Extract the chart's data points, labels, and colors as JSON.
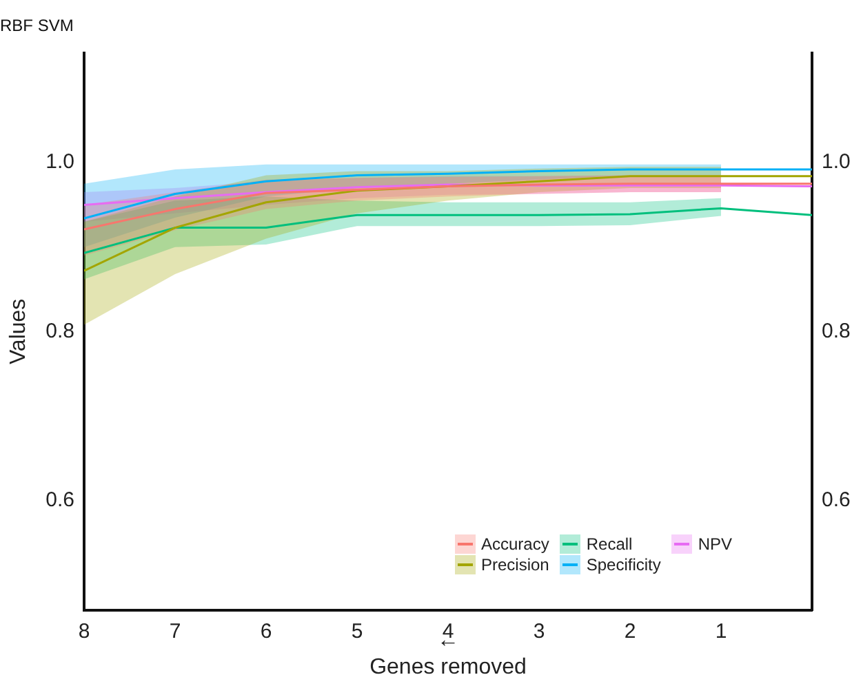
{
  "chart_data": {
    "type": "line",
    "title": "RBF SVM",
    "xlabel": "←\nGenes removed",
    "ylabel": "Values",
    "x": [
      8,
      7,
      6,
      5,
      4,
      3,
      2,
      1,
      0
    ],
    "series": [
      {
        "name": "Accuracy",
        "color": "#f8766d",
        "values": [
          0.921,
          0.945,
          0.964,
          0.968,
          0.972,
          0.974,
          0.975,
          0.975,
          0.975
        ],
        "lower": [
          0.89,
          0.92,
          0.945,
          0.955,
          0.96,
          0.963,
          0.965,
          0.965,
          null
        ],
        "upper": [
          0.95,
          0.965,
          0.98,
          0.982,
          0.983,
          0.984,
          0.985,
          0.985,
          null
        ]
      },
      {
        "name": "Precision",
        "color": "#a3a500",
        "values": [
          0.872,
          0.923,
          0.953,
          0.967,
          0.972,
          0.978,
          0.984,
          0.984,
          0.984
        ],
        "lower": [
          0.808,
          0.868,
          0.91,
          0.94,
          0.955,
          0.965,
          0.97,
          0.97,
          null
        ],
        "upper": [
          0.93,
          0.96,
          0.985,
          0.99,
          0.99,
          0.993,
          0.995,
          0.995,
          null
        ]
      },
      {
        "name": "Recall",
        "color": "#00bf7d",
        "values": [
          0.893,
          0.923,
          0.923,
          0.938,
          0.938,
          0.938,
          0.939,
          0.946,
          0.938
        ],
        "lower": [
          0.862,
          0.9,
          0.903,
          0.925,
          0.925,
          0.925,
          0.926,
          0.937,
          null
        ],
        "upper": [
          0.93,
          0.955,
          0.96,
          0.955,
          0.953,
          0.953,
          0.953,
          0.958,
          null
        ]
      },
      {
        "name": "Specificity",
        "color": "#00b0f6",
        "values": [
          0.934,
          0.963,
          0.978,
          0.985,
          0.987,
          0.99,
          0.992,
          0.992,
          0.992
        ],
        "lower": [
          0.9,
          0.935,
          0.96,
          0.97,
          0.975,
          0.98,
          0.985,
          0.985,
          null
        ],
        "upper": [
          0.975,
          0.992,
          0.998,
          0.998,
          0.998,
          0.998,
          0.998,
          0.998,
          null
        ]
      },
      {
        "name": "NPV",
        "color": "#e76bf3",
        "values": [
          0.95,
          0.958,
          0.965,
          0.971,
          0.974,
          0.973,
          0.973,
          0.973,
          0.972
        ],
        "lower": [
          0.93,
          0.94,
          0.95,
          0.958,
          0.962,
          0.963,
          0.965,
          0.965,
          null
        ],
        "upper": [
          0.965,
          0.97,
          0.978,
          0.982,
          0.984,
          0.984,
          0.985,
          0.985,
          null
        ]
      }
    ],
    "xlim": [
      8,
      0
    ],
    "xticks": [
      8,
      7,
      6,
      5,
      4,
      3,
      2,
      1
    ],
    "ylim": [
      0.47,
      1.13
    ],
    "yticks": [
      0.6,
      0.8,
      {
        "value": 1.0,
        "label": "1.0"
      }
    ],
    "y2lim": [
      0.47,
      1.13
    ],
    "y2ticks": [
      0.6,
      0.8,
      {
        "value": 1.0,
        "label": "1.0"
      }
    ],
    "grid": false,
    "legend": "bottom right",
    "marker": "none",
    "line_style": "solid"
  }
}
